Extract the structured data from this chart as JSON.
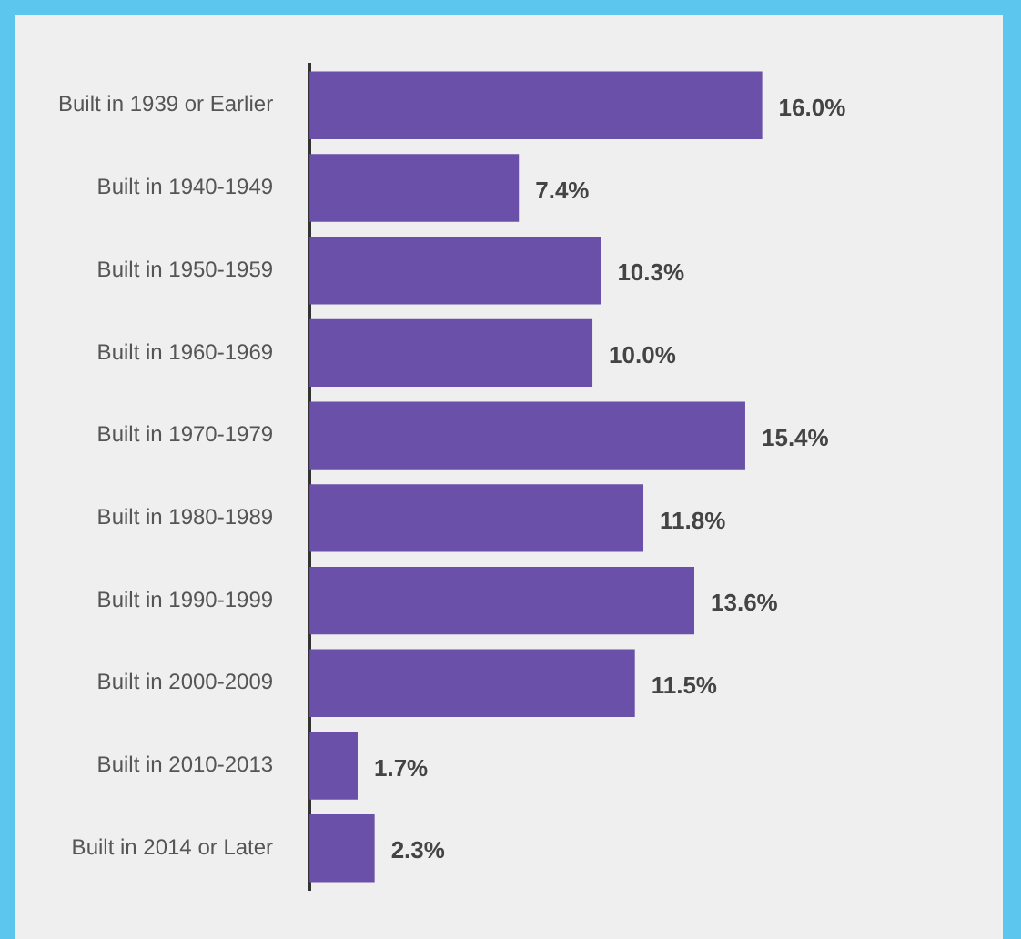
{
  "chart_data": {
    "type": "bar",
    "orientation": "horizontal",
    "categories": [
      "Built in 1939 or Earlier",
      "Built in 1940-1949",
      "Built in 1950-1959",
      "Built in 1960-1969",
      "Built in 1970-1979",
      "Built in 1980-1989",
      "Built in 1990-1999",
      "Built in 2000-2009",
      "Built in 2010-2013",
      "Built in 2014 or Later"
    ],
    "values": [
      16.0,
      7.4,
      10.3,
      10.0,
      15.4,
      11.8,
      13.6,
      11.5,
      1.7,
      2.3
    ],
    "value_labels": [
      "16.0%",
      "7.4%",
      "10.3%",
      "10.0%",
      "15.4%",
      "11.8%",
      "13.6%",
      "11.5%",
      "1.7%",
      "2.3%"
    ],
    "color": "#6a50a8",
    "tick_labels": "y",
    "legend": false
  }
}
